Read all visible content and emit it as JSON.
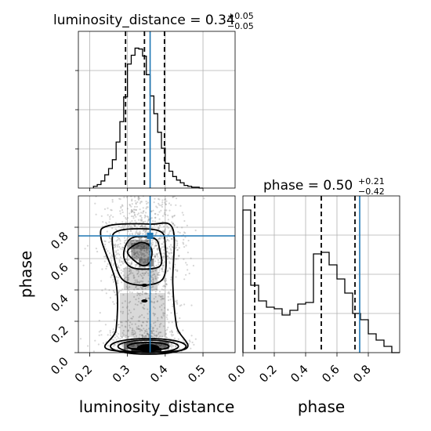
{
  "chart_data": {
    "type": "corner",
    "colors": {
      "line": "#000000",
      "truth": "#1f77b4",
      "grid": "#b0b0b0",
      "points": "#8a8a8a"
    },
    "parameters": [
      {
        "name": "luminosity_distance",
        "label": "luminosity_distance",
        "median": "0.34",
        "plus": "+0.05",
        "minus": "−0.05",
        "truth": 0.36,
        "quantiles": [
          0.295,
          0.345,
          0.398
        ],
        "range": [
          0.17,
          0.585
        ],
        "ticks": [
          0.2,
          0.3,
          0.4,
          0.5
        ],
        "tick_labels": [
          "0.2",
          "0.3",
          "0.4",
          "0.5"
        ]
      },
      {
        "name": "phase",
        "label": "phase",
        "median": "0.50",
        "plus": "+0.21",
        "minus": "−0.42",
        "truth": 0.745,
        "quantiles": [
          0.075,
          0.5,
          0.715
        ],
        "range": [
          0.0,
          1.0
        ],
        "ticks": [
          0.0,
          0.2,
          0.4,
          0.6,
          0.8
        ],
        "tick_labels": [
          "0.0",
          "0.2",
          "0.4",
          "0.6",
          "0.8"
        ]
      }
    ],
    "title_template": {
      "lum": "luminosity_distance = ",
      "phase": "phase = "
    },
    "hist_luminosity_distance": {
      "bin_edges": [
        0.21,
        0.22,
        0.23,
        0.24,
        0.25,
        0.26,
        0.27,
        0.28,
        0.29,
        0.3,
        0.31,
        0.32,
        0.33,
        0.34,
        0.35,
        0.36,
        0.37,
        0.38,
        0.39,
        0.4,
        0.41,
        0.42,
        0.43,
        0.44,
        0.45,
        0.46,
        0.47,
        0.48,
        0.49,
        0.5
      ],
      "counts": [
        2,
        4,
        8,
        15,
        22,
        32,
        52,
        75,
        103,
        140,
        150,
        158,
        157,
        149,
        128,
        104,
        84,
        63,
        45,
        28,
        19,
        13,
        9,
        6,
        3,
        2,
        1,
        1,
        0
      ]
    },
    "hist_phase": {
      "bin_edges": [
        0.0,
        0.05,
        0.1,
        0.15,
        0.2,
        0.25,
        0.3,
        0.35,
        0.4,
        0.45,
        0.5,
        0.55,
        0.6,
        0.65,
        0.7,
        0.75,
        0.8,
        0.85,
        0.9,
        0.95,
        1.0
      ],
      "counts": [
        0.91,
        0.43,
        0.33,
        0.29,
        0.28,
        0.24,
        0.27,
        0.31,
        0.32,
        0.63,
        0.64,
        0.56,
        0.47,
        0.38,
        0.25,
        0.21,
        0.12,
        0.08,
        0.04,
        0.0
      ]
    },
    "contour_levels": [
      [
        [
          0.3,
          0.64
        ],
        [
          0.335,
          0.56
        ],
        [
          0.357,
          0.57
        ],
        [
          0.365,
          0.64
        ],
        [
          0.355,
          0.69
        ],
        [
          0.33,
          0.7
        ]
      ],
      [
        [
          0.29,
          0.62
        ],
        [
          0.315,
          0.54
        ],
        [
          0.385,
          0.55
        ],
        [
          0.385,
          0.66
        ],
        [
          0.37,
          0.73
        ],
        [
          0.31,
          0.73
        ]
      ],
      [
        [
          0.26,
          0.7
        ],
        [
          0.29,
          0.46
        ],
        [
          0.39,
          0.46
        ],
        [
          0.4,
          0.69
        ],
        [
          0.38,
          0.78
        ],
        [
          0.28,
          0.78
        ]
      ],
      [
        [
          0.23,
          0.73
        ],
        [
          0.27,
          0.44
        ],
        [
          0.27,
          0.15
        ],
        [
          0.25,
          0.02
        ],
        [
          0.45,
          0.02
        ],
        [
          0.43,
          0.17
        ],
        [
          0.42,
          0.44
        ],
        [
          0.42,
          0.79
        ],
        [
          0.36,
          0.82
        ],
        [
          0.25,
          0.81
        ]
      ]
    ],
    "kde_center": [
      0.355,
      0.04
    ]
  }
}
